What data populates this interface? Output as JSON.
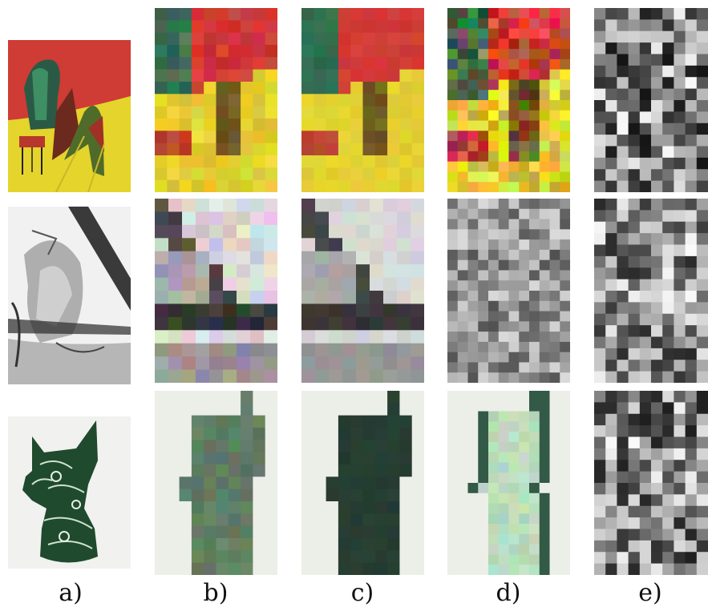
{
  "figure": {
    "column_labels": [
      "a)",
      "b)",
      "c)",
      "d)",
      "e)"
    ],
    "rows": [
      {
        "name": "colorful-painting-row",
        "palette": {
          "red": "#cf3b35",
          "yellow": "#e5d431",
          "green": "#3b8a5e",
          "dark": "#1e3b2f",
          "brown": "#7a2d1e"
        }
      },
      {
        "name": "charcoal-drawing-row",
        "palette": {
          "light": "#f2f2f2",
          "mid": "#9a9a9a",
          "dark": "#262626"
        }
      },
      {
        "name": "green-sculpture-row",
        "palette": {
          "background": "#eef0ea",
          "green": "#5b7f66",
          "dark-green": "#233a2e",
          "pale-green": "#b8dcbc"
        }
      }
    ]
  }
}
